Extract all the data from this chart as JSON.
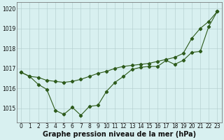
{
  "hours": [
    0,
    1,
    2,
    3,
    4,
    5,
    6,
    7,
    8,
    9,
    10,
    11,
    12,
    13,
    14,
    15,
    16,
    17,
    18,
    19,
    20,
    21,
    22,
    23
  ],
  "series1": [
    1016.8,
    1016.6,
    1016.2,
    1015.95,
    1014.9,
    1014.7,
    1015.05,
    1014.65,
    1015.1,
    1015.15,
    1015.85,
    1016.3,
    1016.6,
    1016.95,
    1017.05,
    1017.1,
    1017.1,
    1017.4,
    1017.2,
    1017.4,
    1017.8,
    1017.85,
    1019.1,
    1019.85
  ],
  "series2": [
    1016.8,
    1016.6,
    1016.55,
    1016.4,
    1016.35,
    1016.3,
    1016.35,
    1016.45,
    1016.6,
    1016.75,
    1016.85,
    1017.0,
    1017.1,
    1017.15,
    1017.2,
    1017.25,
    1017.35,
    1017.45,
    1017.55,
    1017.75,
    1018.5,
    1019.0,
    1019.35,
    1019.85
  ],
  "line_color": "#2d5a1b",
  "bg_color": "#d8f0f0",
  "grid_color": "#b0cccc",
  "xlabel": "Graphe pression niveau de la mer (hPa)",
  "ylim": [
    1014.3,
    1020.3
  ],
  "yticks": [
    1015,
    1016,
    1017,
    1018,
    1019,
    1020
  ],
  "xticks": [
    0,
    1,
    2,
    3,
    4,
    5,
    6,
    7,
    8,
    9,
    10,
    11,
    12,
    13,
    14,
    15,
    16,
    17,
    18,
    19,
    20,
    21,
    22,
    23
  ],
  "xlabel_fontsize": 7,
  "tick_fontsize": 5.5,
  "linewidth": 0.8,
  "markersize": 2.2
}
